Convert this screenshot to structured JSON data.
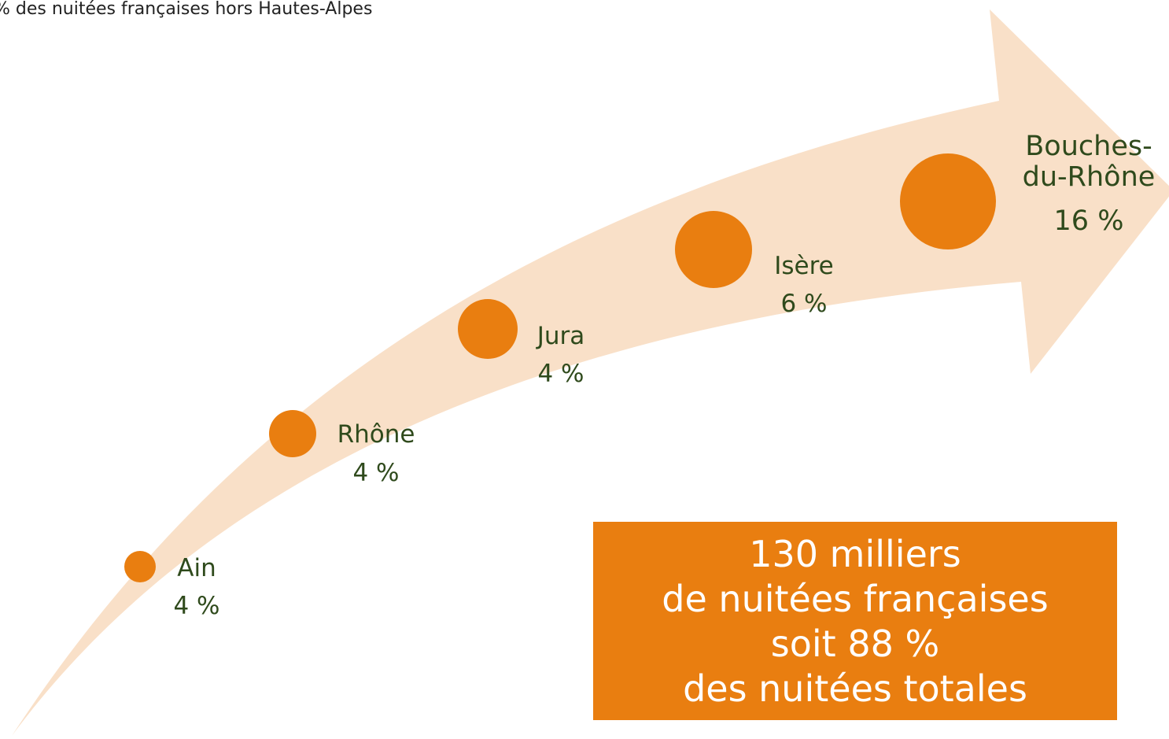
{
  "title": "% des nuitées françaises hors Hautes-Alpes",
  "items": [
    {
      "label": "Ain",
      "value": "4 %"
    },
    {
      "label": "Rhône",
      "value": "4 %"
    },
    {
      "label": "Jura",
      "value": "4 %"
    },
    {
      "label": "Isère",
      "value": "6 %"
    },
    {
      "label": [
        "Bouches-",
        "du-Rhône"
      ],
      "value": "16 %"
    }
  ],
  "summary": [
    "130 milliers",
    "de nuitées françaises",
    "soit 88 %",
    "des nuitées totales"
  ]
}
